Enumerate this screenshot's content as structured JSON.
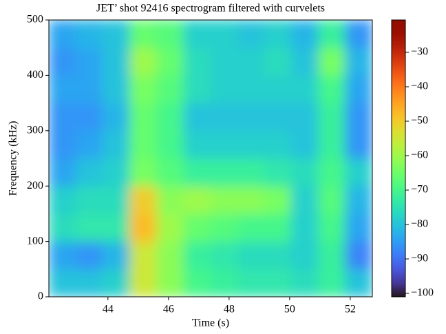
{
  "chart_data": {
    "type": "heatmap",
    "title": "JET’ shot 92416 spectrogram filtered with curvelets",
    "x_label": "Time (s)",
    "y_label": "Frequency (kHz)",
    "colormap": "turbo",
    "xbins": [
      42.05,
      42.94,
      43.83,
      44.72,
      45.61,
      46.5,
      47.39,
      48.28,
      49.17,
      50.06,
      50.95,
      51.84,
      52.73
    ],
    "ybins": [
      0,
      50,
      100,
      150,
      200,
      250,
      300,
      350,
      400,
      450,
      500
    ],
    "z": [
      [
        -80,
        -80,
        -78,
        -55,
        -62,
        -70,
        -72,
        -74,
        -74,
        -76,
        -72,
        -80
      ],
      [
        -84,
        -86,
        -82,
        -55,
        -62,
        -72,
        -74,
        -76,
        -76,
        -78,
        -72,
        -88
      ],
      [
        -76,
        -74,
        -74,
        -48,
        -60,
        -66,
        -68,
        -70,
        -70,
        -78,
        -70,
        -84
      ],
      [
        -78,
        -76,
        -76,
        -50,
        -62,
        -60,
        -62,
        -62,
        -64,
        -78,
        -68,
        -82
      ],
      [
        -84,
        -80,
        -78,
        -64,
        -68,
        -72,
        -72,
        -72,
        -74,
        -76,
        -70,
        -78
      ],
      [
        -86,
        -84,
        -80,
        -66,
        -70,
        -78,
        -78,
        -78,
        -78,
        -80,
        -72,
        -86
      ],
      [
        -86,
        -86,
        -82,
        -66,
        -70,
        -80,
        -80,
        -80,
        -80,
        -80,
        -72,
        -86
      ],
      [
        -84,
        -84,
        -80,
        -64,
        -68,
        -76,
        -78,
        -78,
        -78,
        -78,
        -70,
        -84
      ],
      [
        -86,
        -84,
        -80,
        -60,
        -66,
        -76,
        -78,
        -78,
        -76,
        -80,
        -64,
        -82
      ],
      [
        -84,
        -82,
        -80,
        -66,
        -68,
        -78,
        -78,
        -80,
        -78,
        -82,
        -72,
        -86
      ]
    ],
    "xlim": [
      42.05,
      52.73
    ],
    "xticks": [
      44,
      46,
      48,
      50,
      52
    ],
    "ylim": [
      0,
      500
    ],
    "yticks": [
      0,
      100,
      200,
      300,
      400,
      500
    ],
    "clim": [
      -101,
      -20.6
    ],
    "cticks": [
      {
        "value": -100,
        "label": "−100"
      },
      {
        "value": -90,
        "label": "−90"
      },
      {
        "value": -80,
        "label": "−80"
      },
      {
        "value": -70,
        "label": "−70"
      },
      {
        "value": -60,
        "label": "−60"
      },
      {
        "value": -50,
        "label": "−50"
      },
      {
        "value": -40,
        "label": "−40"
      },
      {
        "value": -30,
        "label": "−30"
      }
    ]
  }
}
